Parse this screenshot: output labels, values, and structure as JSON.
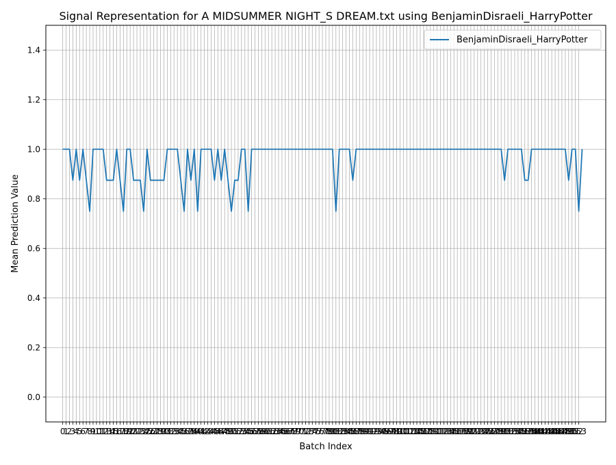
{
  "chart_data": {
    "type": "line",
    "title": "Signal Representation for A MIDSUMMER NIGHT_S DREAM.txt using BenjaminDisraeli_HarryPotter",
    "xlabel": "Batch Index",
    "ylabel": "Mean Prediction Value",
    "xlim": [
      -5.0,
      161.0
    ],
    "ylim": [
      -0.1,
      1.5
    ],
    "yticks": [
      "0.0",
      "0.2",
      "0.4",
      "0.6",
      "0.8",
      "1.0",
      "1.2",
      "1.4"
    ],
    "x_count": 154,
    "grid": true,
    "legend_position": "upper right",
    "series": [
      {
        "name": "BenjaminDisraeli_HarryPotter",
        "color": "#1f77b4",
        "values": [
          1.0,
          1.0,
          1.0,
          0.875,
          1.0,
          0.875,
          1.0,
          0.875,
          0.75,
          1.0,
          1.0,
          1.0,
          1.0,
          0.875,
          0.875,
          0.875,
          1.0,
          0.875,
          0.75,
          1.0,
          1.0,
          0.875,
          0.875,
          0.875,
          0.75,
          1.0,
          0.875,
          0.875,
          0.875,
          0.875,
          0.875,
          1.0,
          1.0,
          1.0,
          1.0,
          0.875,
          0.75,
          1.0,
          0.875,
          1.0,
          0.75,
          1.0,
          1.0,
          1.0,
          1.0,
          0.875,
          1.0,
          0.875,
          1.0,
          0.875,
          0.75,
          0.875,
          0.875,
          1.0,
          1.0,
          0.75,
          1.0,
          1.0,
          1.0,
          1.0,
          1.0,
          1.0,
          1.0,
          1.0,
          1.0,
          1.0,
          1.0,
          1.0,
          1.0,
          1.0,
          1.0,
          1.0,
          1.0,
          1.0,
          1.0,
          1.0,
          1.0,
          1.0,
          1.0,
          1.0,
          1.0,
          0.75,
          1.0,
          1.0,
          1.0,
          1.0,
          0.875,
          1.0,
          1.0,
          1.0,
          1.0,
          1.0,
          1.0,
          1.0,
          1.0,
          1.0,
          1.0,
          1.0,
          1.0,
          1.0,
          1.0,
          1.0,
          1.0,
          1.0,
          1.0,
          1.0,
          1.0,
          1.0,
          1.0,
          1.0,
          1.0,
          1.0,
          1.0,
          1.0,
          1.0,
          1.0,
          1.0,
          1.0,
          1.0,
          1.0,
          1.0,
          1.0,
          1.0,
          1.0,
          1.0,
          1.0,
          1.0,
          1.0,
          1.0,
          1.0,
          1.0,
          0.875,
          1.0,
          1.0,
          1.0,
          1.0,
          1.0,
          0.875,
          0.875,
          1.0,
          1.0,
          1.0,
          1.0,
          1.0,
          1.0,
          1.0,
          1.0,
          1.0,
          1.0,
          1.0,
          0.875,
          1.0,
          1.0,
          0.75,
          1.0
        ]
      }
    ]
  }
}
